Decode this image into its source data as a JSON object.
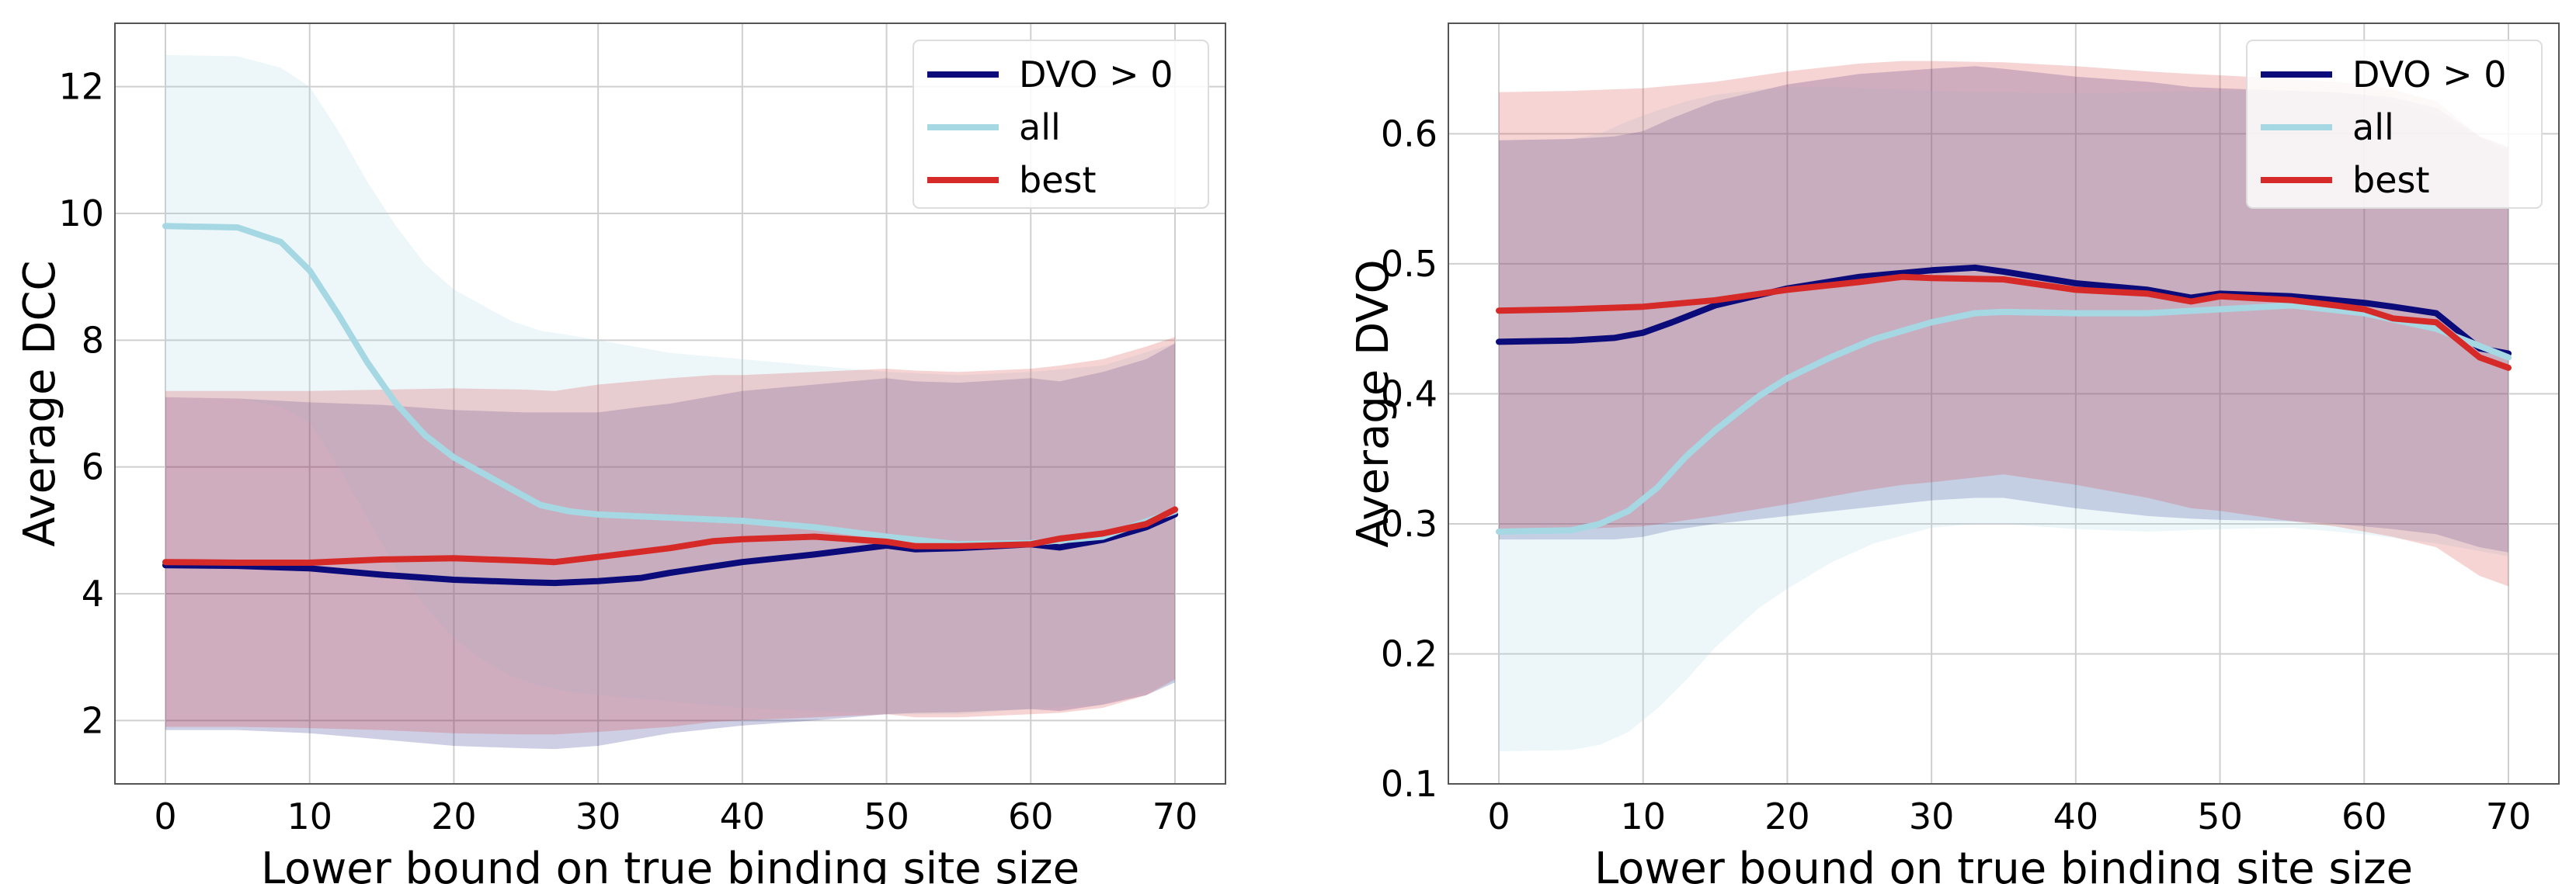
{
  "chart_data": [
    {
      "type": "line",
      "title": "",
      "xlabel": "Lower bound on true binding site size",
      "ylabel": "Average DCC",
      "xlim": [
        -3.5,
        73.5
      ],
      "ylim": [
        1.0,
        13.0
      ],
      "xticks": [
        0,
        10,
        20,
        30,
        40,
        50,
        60,
        70
      ],
      "yticks": [
        2,
        4,
        6,
        8,
        10,
        12
      ],
      "grid": true,
      "legend_position": "top-right",
      "series": [
        {
          "name": "DVO > 0",
          "color": "#0b0b7a",
          "x": [
            0,
            5,
            10,
            15,
            20,
            25,
            27,
            30,
            33,
            35,
            40,
            45,
            50,
            52,
            55,
            60,
            62,
            65,
            68,
            70
          ],
          "mean": [
            4.45,
            4.44,
            4.4,
            4.3,
            4.22,
            4.18,
            4.17,
            4.2,
            4.25,
            4.33,
            4.5,
            4.62,
            4.76,
            4.7,
            4.72,
            4.78,
            4.73,
            4.85,
            5.05,
            5.25
          ],
          "lower": [
            1.85,
            1.85,
            1.8,
            1.7,
            1.6,
            1.56,
            1.55,
            1.6,
            1.72,
            1.8,
            1.92,
            2.0,
            2.1,
            2.12,
            2.13,
            2.18,
            2.15,
            2.25,
            2.4,
            2.6
          ],
          "upper": [
            7.1,
            7.08,
            7.02,
            6.98,
            6.9,
            6.86,
            6.86,
            6.86,
            6.95,
            7.0,
            7.2,
            7.3,
            7.4,
            7.35,
            7.33,
            7.4,
            7.35,
            7.5,
            7.7,
            7.95
          ]
        },
        {
          "name": "all",
          "color": "#a6d8e4",
          "x": [
            0,
            5,
            8,
            10,
            12,
            14,
            16,
            18,
            20,
            22,
            24,
            26,
            28,
            30,
            35,
            40,
            45,
            50,
            55,
            60,
            65,
            70
          ],
          "mean": [
            9.8,
            9.78,
            9.55,
            9.1,
            8.4,
            7.65,
            7.0,
            6.5,
            6.15,
            5.9,
            5.65,
            5.4,
            5.3,
            5.25,
            5.2,
            5.15,
            5.05,
            4.9,
            4.78,
            4.8,
            4.9,
            5.3
          ],
          "lower": [
            7.1,
            7.08,
            6.95,
            6.7,
            6.0,
            5.2,
            4.4,
            3.8,
            3.3,
            2.95,
            2.7,
            2.55,
            2.45,
            2.4,
            2.3,
            2.2,
            2.15,
            2.1,
            2.1,
            2.18,
            2.25,
            2.6
          ],
          "upper": [
            12.5,
            12.48,
            12.3,
            12.0,
            11.3,
            10.5,
            9.8,
            9.2,
            8.8,
            8.55,
            8.3,
            8.15,
            8.08,
            8.0,
            7.8,
            7.7,
            7.6,
            7.5,
            7.45,
            7.5,
            7.6,
            7.95
          ]
        },
        {
          "name": "best",
          "color": "#d62a28",
          "x": [
            0,
            5,
            10,
            15,
            20,
            25,
            27,
            30,
            35,
            38,
            40,
            45,
            50,
            52,
            55,
            60,
            62,
            65,
            68,
            70
          ],
          "mean": [
            4.5,
            4.49,
            4.49,
            4.54,
            4.56,
            4.52,
            4.5,
            4.58,
            4.72,
            4.83,
            4.86,
            4.9,
            4.82,
            4.75,
            4.75,
            4.78,
            4.87,
            4.95,
            5.1,
            5.33
          ],
          "lower": [
            1.9,
            1.9,
            1.88,
            1.85,
            1.8,
            1.78,
            1.78,
            1.82,
            1.9,
            1.98,
            2.0,
            2.05,
            2.1,
            2.05,
            2.05,
            2.1,
            2.12,
            2.2,
            2.4,
            2.65
          ],
          "upper": [
            7.2,
            7.2,
            7.2,
            7.22,
            7.24,
            7.22,
            7.2,
            7.3,
            7.4,
            7.45,
            7.45,
            7.5,
            7.55,
            7.52,
            7.5,
            7.55,
            7.6,
            7.7,
            7.9,
            8.05
          ]
        }
      ]
    },
    {
      "type": "line",
      "title": "",
      "xlabel": "Lower bound on true binding site size",
      "ylabel": "Average DVO",
      "xlim": [
        -3.5,
        73.5
      ],
      "ylim": [
        0.1,
        0.685
      ],
      "xticks": [
        0,
        10,
        20,
        30,
        40,
        50,
        60,
        70
      ],
      "yticks": [
        0.1,
        0.2,
        0.3,
        0.4,
        0.5,
        0.6
      ],
      "grid": true,
      "legend_position": "top-right",
      "series": [
        {
          "name": "DVO > 0",
          "color": "#0b0b7a",
          "x": [
            0,
            5,
            8,
            10,
            12,
            15,
            20,
            25,
            30,
            33,
            35,
            40,
            45,
            48,
            50,
            55,
            58,
            60,
            62,
            65,
            68,
            70
          ],
          "mean": [
            0.44,
            0.441,
            0.443,
            0.447,
            0.455,
            0.468,
            0.481,
            0.49,
            0.495,
            0.497,
            0.494,
            0.485,
            0.48,
            0.474,
            0.477,
            0.475,
            0.472,
            0.47,
            0.467,
            0.462,
            0.435,
            0.431
          ],
          "lower": [
            0.288,
            0.288,
            0.288,
            0.29,
            0.295,
            0.3,
            0.306,
            0.312,
            0.318,
            0.32,
            0.32,
            0.312,
            0.306,
            0.304,
            0.303,
            0.302,
            0.3,
            0.298,
            0.296,
            0.292,
            0.282,
            0.278
          ],
          "upper": [
            0.595,
            0.596,
            0.598,
            0.602,
            0.612,
            0.625,
            0.638,
            0.646,
            0.65,
            0.652,
            0.65,
            0.644,
            0.64,
            0.636,
            0.635,
            0.633,
            0.632,
            0.63,
            0.628,
            0.62,
            0.598,
            0.59
          ]
        },
        {
          "name": "all",
          "color": "#a6d8e4",
          "x": [
            0,
            5,
            7,
            9,
            11,
            13,
            15,
            18,
            20,
            23,
            26,
            30,
            33,
            35,
            40,
            45,
            50,
            55,
            60,
            65,
            70
          ],
          "mean": [
            0.294,
            0.295,
            0.3,
            0.31,
            0.328,
            0.352,
            0.372,
            0.398,
            0.412,
            0.428,
            0.442,
            0.455,
            0.462,
            0.463,
            0.462,
            0.462,
            0.465,
            0.468,
            0.462,
            0.45,
            0.428
          ],
          "lower": [
            0.125,
            0.126,
            0.13,
            0.14,
            0.158,
            0.18,
            0.205,
            0.235,
            0.25,
            0.27,
            0.285,
            0.297,
            0.3,
            0.3,
            0.296,
            0.294,
            0.296,
            0.297,
            0.292,
            0.285,
            0.275
          ],
          "upper": [
            0.595,
            0.596,
            0.6,
            0.61,
            0.618,
            0.625,
            0.63,
            0.634,
            0.636,
            0.636,
            0.635,
            0.633,
            0.632,
            0.632,
            0.631,
            0.632,
            0.633,
            0.634,
            0.63,
            0.615,
            0.585
          ]
        },
        {
          "name": "best",
          "color": "#d62a28",
          "x": [
            0,
            5,
            10,
            15,
            20,
            25,
            28,
            30,
            35,
            40,
            45,
            48,
            50,
            55,
            58,
            60,
            62,
            65,
            68,
            70
          ],
          "mean": [
            0.464,
            0.465,
            0.467,
            0.472,
            0.48,
            0.486,
            0.49,
            0.489,
            0.488,
            0.48,
            0.477,
            0.471,
            0.475,
            0.472,
            0.468,
            0.465,
            0.458,
            0.455,
            0.428,
            0.42
          ],
          "lower": [
            0.296,
            0.296,
            0.298,
            0.306,
            0.315,
            0.325,
            0.33,
            0.332,
            0.338,
            0.33,
            0.32,
            0.312,
            0.31,
            0.302,
            0.298,
            0.294,
            0.29,
            0.282,
            0.26,
            0.252
          ],
          "upper": [
            0.632,
            0.633,
            0.635,
            0.64,
            0.648,
            0.654,
            0.656,
            0.656,
            0.655,
            0.652,
            0.648,
            0.646,
            0.645,
            0.642,
            0.64,
            0.638,
            0.634,
            0.625,
            0.598,
            0.588
          ]
        }
      ]
    }
  ]
}
